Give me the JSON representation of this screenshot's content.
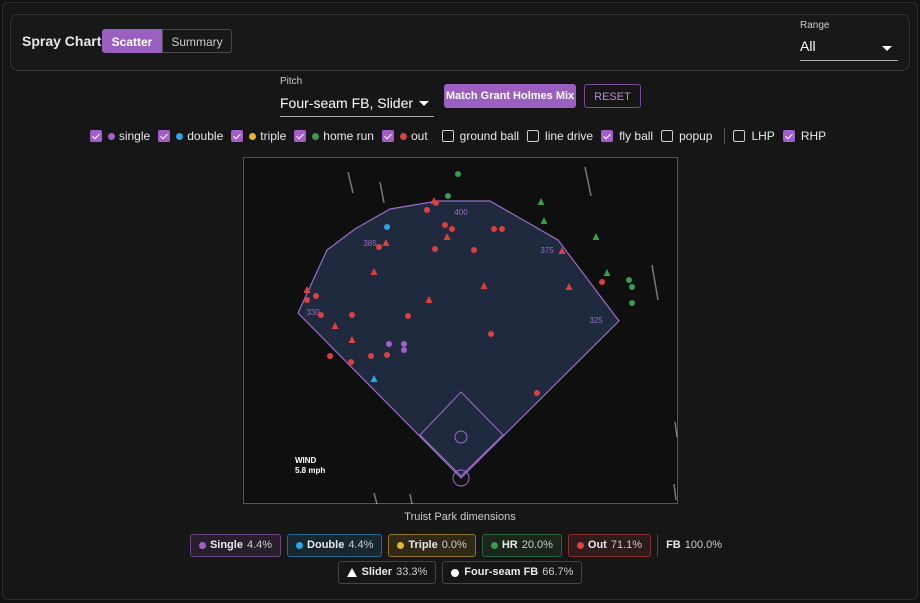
{
  "header": {
    "title": "Spray Chart",
    "tabs": [
      {
        "label": "Scatter",
        "active": true
      },
      {
        "label": "Summary",
        "active": false
      }
    ],
    "range": {
      "label": "Range",
      "value": "All"
    }
  },
  "pitch": {
    "label": "Pitch",
    "value": "Four-seam FB, Slider"
  },
  "buttons": {
    "match": "Match Grant Holmes Mix",
    "reset": "RESET"
  },
  "filters": [
    [
      {
        "label": "single",
        "checked": true,
        "color": "#a25fc9"
      },
      {
        "label": "double",
        "checked": true,
        "color": "#2aa7e6"
      },
      {
        "label": "triple",
        "checked": true,
        "color": "#e6b62a"
      },
      {
        "label": "home run",
        "checked": true,
        "color": "#3a9a4e"
      },
      {
        "label": "out",
        "checked": true,
        "color": "#dc4040"
      }
    ],
    [
      {
        "label": "ground ball",
        "checked": false
      },
      {
        "label": "line drive",
        "checked": false
      },
      {
        "label": "fly ball",
        "checked": true
      },
      {
        "label": "popup",
        "checked": false
      }
    ],
    [
      {
        "label": "LHP",
        "checked": false
      },
      {
        "label": "RHP",
        "checked": true
      }
    ]
  ],
  "field": {
    "distances": {
      "center": "400",
      "left_center": "385",
      "right_center": "375",
      "left": "330",
      "right": "325"
    },
    "wind": {
      "label": "WIND",
      "value": "5.8 mph"
    },
    "caption": "Truist Park dimensions"
  },
  "summary": {
    "results": [
      {
        "label": "Single",
        "value": "4.4%",
        "color": "#a25fc9"
      },
      {
        "label": "Double",
        "value": "4.4%",
        "color": "#2aa7e6"
      },
      {
        "label": "Triple",
        "value": "0.0%",
        "color": "#e6b62a"
      },
      {
        "label": "HR",
        "value": "20.0%",
        "color": "#3a9a4e"
      },
      {
        "label": "Out",
        "value": "71.1%",
        "color": "#dc4040"
      },
      {
        "label": "FB",
        "value": "100.0%"
      }
    ],
    "pitches": [
      {
        "label": "Slider",
        "value": "33.3%",
        "shape": "triangle"
      },
      {
        "label": "Four-seam FB",
        "value": "66.7%",
        "shape": "circle"
      }
    ]
  }
}
